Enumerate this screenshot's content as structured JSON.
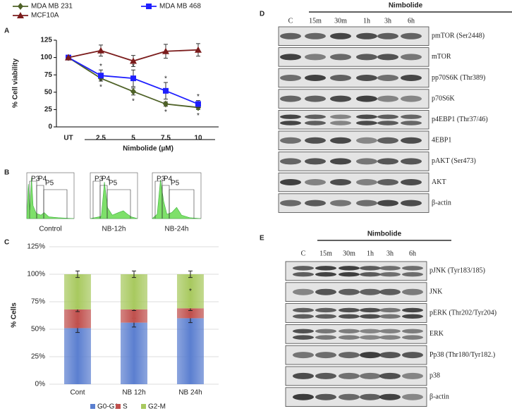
{
  "panels": [
    "A",
    "B",
    "C",
    "D",
    "E"
  ],
  "chart_data": [
    {
      "type": "line",
      "ylabel": "% Cell viability",
      "xlabel": "Nimbolide  (µM)",
      "categories": [
        "UT",
        "2.5",
        "5",
        "7.5",
        "10"
      ],
      "ylim": [
        0,
        125
      ],
      "yticks": [
        0,
        25,
        50,
        75,
        100,
        125
      ],
      "series": [
        {
          "name": "MDA MB 231",
          "color": "#4f6228",
          "marker": "diamond",
          "values": [
            100,
            70,
            51,
            33,
            28
          ],
          "errors": [
            0,
            4,
            5,
            3,
            3
          ],
          "significance": [
            null,
            "*",
            "*",
            "*",
            "*"
          ]
        },
        {
          "name": "MDA MB 468",
          "color": "#1f1fff",
          "marker": "square",
          "values": [
            100,
            74,
            70,
            52,
            33
          ],
          "errors": [
            0,
            8,
            12,
            12,
            5
          ],
          "significance": [
            null,
            "*",
            "*",
            "*",
            "*"
          ]
        },
        {
          "name": "MCF10A",
          "color": "#7b1c1c",
          "marker": "triangle",
          "values": [
            100,
            110,
            95,
            109,
            111
          ],
          "errors": [
            0,
            8,
            8,
            10,
            9
          ],
          "significance": [
            null,
            null,
            null,
            null,
            null
          ]
        }
      ]
    },
    {
      "type": "stacked-bar",
      "ylabel": "% Cells",
      "categories": [
        "Cont",
        "NB 12h",
        "NB 24h"
      ],
      "ylim": [
        0,
        125
      ],
      "yticks": [
        {
          "value": 0,
          "label": "0%"
        },
        {
          "value": 25,
          "label": "25%"
        },
        {
          "value": 50,
          "label": "50%"
        },
        {
          "value": 75,
          "label": "75%"
        },
        {
          "value": 100,
          "label": "100%"
        },
        {
          "value": 125,
          "label": "125%"
        }
      ],
      "series": [
        {
          "name": "G0-G1",
          "color": "#5b7fd0",
          "values": [
            51,
            56,
            60
          ],
          "errors": [
            4,
            4,
            4
          ],
          "significance": [
            null,
            null,
            null
          ]
        },
        {
          "name": "S",
          "color": "#c0504d",
          "values": [
            17,
            12,
            9
          ],
          "errors": [
            2,
            1,
            2
          ],
          "significance": [
            null,
            null,
            null
          ]
        },
        {
          "name": "G2-M",
          "color": "#a8c95f",
          "values": [
            32,
            32,
            31
          ],
          "errors": [
            3,
            3,
            3
          ],
          "significance": [
            null,
            null,
            "*"
          ]
        }
      ]
    }
  ],
  "flow": {
    "plots": [
      {
        "label": "Control",
        "gates": [
          "P3",
          "P4",
          "P5"
        ]
      },
      {
        "label": "NB-12h",
        "gates": [
          "P3",
          "P4",
          "P5"
        ]
      },
      {
        "label": "NB-24h",
        "gates": [
          "P3",
          "P4",
          "P5"
        ]
      }
    ]
  },
  "blots": [
    {
      "treatment": "Nimbolide",
      "lanes": [
        "C",
        "15m",
        "30m",
        "1h",
        "3h",
        "6h"
      ],
      "rows": [
        "pmTOR  (Ser2448)",
        "mTOR",
        "pp70S6K (Thr389)",
        "p70S6K",
        "p4EBP1 (Thr37/46)",
        "4EBP1",
        "pAKT (Ser473)",
        "AKT",
        "β-actin"
      ]
    },
    {
      "treatment": "Nimbolide",
      "lanes": [
        "C",
        "15m",
        "30m",
        "1h",
        "3h",
        "6h"
      ],
      "rows": [
        "pJNK (Tyr183/185)",
        "JNK",
        "pERK (Thr202/Tyr204)",
        "ERK",
        "Pp38 (Thr180/Tyr182.)",
        "p38",
        "β-actin"
      ]
    }
  ]
}
